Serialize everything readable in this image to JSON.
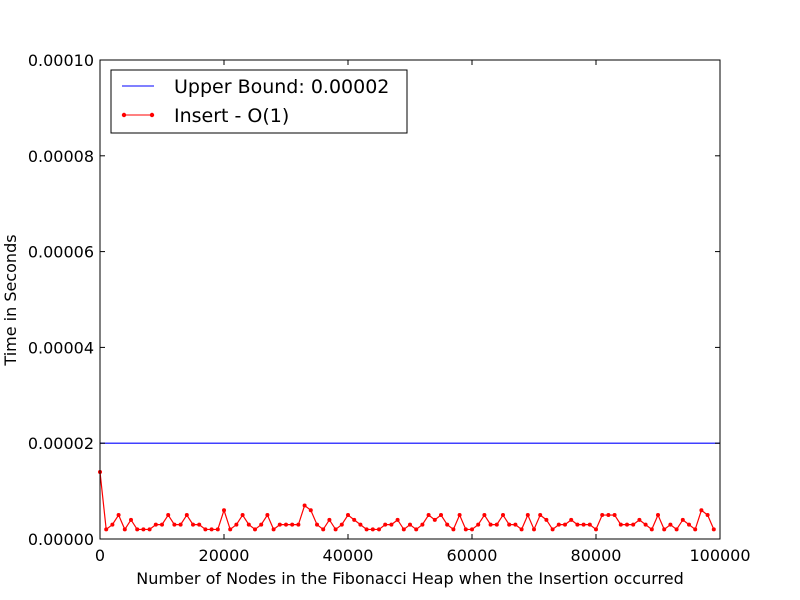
{
  "chart_data": {
    "type": "line",
    "title": "",
    "xlabel": "Number of Nodes in the Fibonacci Heap when the Insertion occurred",
    "ylabel": "Time in Seconds",
    "xlim": [
      0,
      100000
    ],
    "ylim": [
      0,
      0.0001
    ],
    "grid": false,
    "legend_position": "top-left",
    "x_ticks": [
      {
        "value": 0,
        "label": "0"
      },
      {
        "value": 20000,
        "label": "20000"
      },
      {
        "value": 40000,
        "label": "40000"
      },
      {
        "value": 60000,
        "label": "60000"
      },
      {
        "value": 80000,
        "label": "80000"
      },
      {
        "value": 100000,
        "label": "100000"
      }
    ],
    "y_ticks": [
      {
        "value": 0,
        "label": "0.00000"
      },
      {
        "value": 2e-05,
        "label": "0.00002"
      },
      {
        "value": 4e-05,
        "label": "0.00004"
      },
      {
        "value": 6e-05,
        "label": "0.00006"
      },
      {
        "value": 8e-05,
        "label": "0.00008"
      },
      {
        "value": 0.0001,
        "label": "0.00010"
      }
    ],
    "series": [
      {
        "name": "Upper Bound: 0.00002",
        "color": "#0000ff",
        "style": "line",
        "x": [
          0,
          100000
        ],
        "y": [
          2e-05,
          2e-05
        ]
      },
      {
        "name": "Insert - O(1)",
        "color": "#ff0000",
        "style": "line-marker",
        "x": [
          0,
          1000,
          2000,
          3000,
          4000,
          5000,
          6000,
          7000,
          8000,
          9000,
          10000,
          11000,
          12000,
          13000,
          14000,
          15000,
          16000,
          17000,
          18000,
          19000,
          20000,
          21000,
          22000,
          23000,
          24000,
          25000,
          26000,
          27000,
          28000,
          29000,
          30000,
          31000,
          32000,
          33000,
          34000,
          35000,
          36000,
          37000,
          38000,
          39000,
          40000,
          41000,
          42000,
          43000,
          44000,
          45000,
          46000,
          47000,
          48000,
          49000,
          50000,
          51000,
          52000,
          53000,
          54000,
          55000,
          56000,
          57000,
          58000,
          59000,
          60000,
          61000,
          62000,
          63000,
          64000,
          65000,
          66000,
          67000,
          68000,
          69000,
          70000,
          71000,
          72000,
          73000,
          74000,
          75000,
          76000,
          77000,
          78000,
          79000,
          80000,
          81000,
          82000,
          83000,
          84000,
          85000,
          86000,
          87000,
          88000,
          89000,
          90000,
          91000,
          92000,
          93000,
          94000,
          95000,
          96000,
          97000,
          98000,
          99000
        ],
        "y": [
          1.4e-05,
          2e-06,
          3e-06,
          5e-06,
          2e-06,
          4e-06,
          2e-06,
          2e-06,
          2e-06,
          3e-06,
          3e-06,
          5e-06,
          3e-06,
          3e-06,
          5e-06,
          3e-06,
          3e-06,
          2e-06,
          2e-06,
          2e-06,
          6e-06,
          2e-06,
          3e-06,
          5e-06,
          3e-06,
          2e-06,
          3e-06,
          5e-06,
          2e-06,
          3e-06,
          3e-06,
          3e-06,
          3e-06,
          7e-06,
          6e-06,
          3e-06,
          2e-06,
          4e-06,
          2e-06,
          3e-06,
          5e-06,
          4e-06,
          3e-06,
          2e-06,
          2e-06,
          2e-06,
          3e-06,
          3e-06,
          4e-06,
          2e-06,
          3e-06,
          2e-06,
          3e-06,
          5e-06,
          4e-06,
          5e-06,
          3e-06,
          2e-06,
          5e-06,
          2e-06,
          2e-06,
          3e-06,
          5e-06,
          3e-06,
          3e-06,
          5e-06,
          3e-06,
          3e-06,
          2e-06,
          5e-06,
          2e-06,
          5e-06,
          4e-06,
          2e-06,
          3e-06,
          3e-06,
          4e-06,
          3e-06,
          3e-06,
          3e-06,
          2e-06,
          5e-06,
          5e-06,
          5e-06,
          3e-06,
          3e-06,
          3e-06,
          4e-06,
          3e-06,
          2e-06,
          5e-06,
          2e-06,
          3e-06,
          2e-06,
          4e-06,
          3e-06,
          2e-06,
          6e-06,
          5e-06,
          2e-06
        ]
      }
    ]
  }
}
